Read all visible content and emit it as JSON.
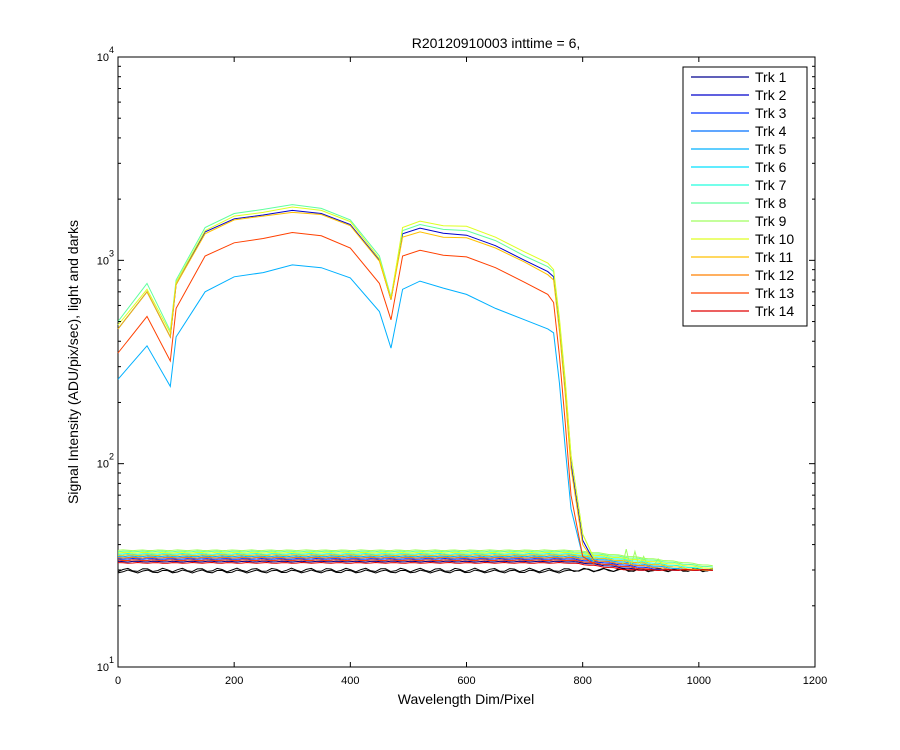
{
  "chart_data": {
    "type": "line",
    "title": "R20120910003 inttime = 6,",
    "xlabel": "Wavelength Dim/Pixel",
    "ylabel": "Signal Intensity (ADU/pix/sec), light and darks",
    "xlim": [
      0,
      1200
    ],
    "ylim": [
      10,
      10000
    ],
    "yscale": "log",
    "x_ticks": [
      "0",
      "200",
      "400",
      "600",
      "800",
      "1000",
      "1200"
    ],
    "y_ticks": [
      {
        "base": "10",
        "exp": "1"
      },
      {
        "base": "10",
        "exp": "2"
      },
      {
        "base": "10",
        "exp": "3"
      },
      {
        "base": "10",
        "exp": "4"
      }
    ],
    "grid": false,
    "legend_position": "top-right",
    "series": [
      {
        "name": "Trk 1",
        "color": "#00008f",
        "light_x": [],
        "light_y": [],
        "dark_level": 33
      },
      {
        "name": "Trk 2",
        "color": "#0000cc",
        "light_x": [],
        "light_y": [],
        "dark_level": 33.5
      },
      {
        "name": "Trk 3",
        "color": "#0030ff",
        "light_x": [],
        "light_y": [],
        "dark_level": 34
      },
      {
        "name": "Trk 4",
        "color": "#0070ff",
        "light_x": [],
        "light_y": [],
        "dark_level": 34.5
      },
      {
        "name": "Trk 5",
        "color": "#00b0ff",
        "light_x": [
          0,
          50,
          90,
          100,
          150,
          200,
          250,
          300,
          350,
          400,
          450,
          470,
          490,
          520,
          560,
          600,
          650,
          700,
          740,
          750,
          760,
          770,
          780,
          800,
          820
        ],
        "light_y": [
          260,
          380,
          240,
          420,
          700,
          830,
          870,
          950,
          920,
          820,
          560,
          370,
          720,
          790,
          730,
          680,
          580,
          510,
          460,
          440,
          250,
          120,
          60,
          35,
          33
        ],
        "dark_level": 35
      },
      {
        "name": "Trk 6",
        "color": "#00e0ff",
        "light_x": [],
        "light_y": [],
        "dark_level": 35.5
      },
      {
        "name": "Trk 7",
        "color": "#20ffdf",
        "light_x": [],
        "light_y": [],
        "dark_level": 36
      },
      {
        "name": "Trk 8",
        "color": "#60ff9f",
        "light_x": [
          0,
          50,
          90,
          100,
          150,
          200,
          250,
          300,
          350,
          400,
          450,
          470,
          490,
          520,
          560,
          600,
          650,
          700,
          740,
          750,
          760,
          770,
          780,
          800,
          820
        ],
        "light_y": [
          500,
          770,
          450,
          800,
          1450,
          1700,
          1780,
          1880,
          1800,
          1580,
          1050,
          660,
          1400,
          1500,
          1420,
          1400,
          1250,
          1050,
          930,
          880,
          500,
          250,
          110,
          45,
          34
        ],
        "dark_level": 37
      },
      {
        "name": "Trk 9",
        "color": "#a0ff5f",
        "light_x": [],
        "light_y": [],
        "dark_level": 37.5
      },
      {
        "name": "Trk 10",
        "color": "#dfff20",
        "light_x": [
          0,
          50,
          90,
          100,
          150,
          200,
          250,
          300,
          350,
          400,
          450,
          470,
          490,
          520,
          560,
          600,
          650,
          700,
          740,
          750,
          760,
          770,
          780,
          800,
          820
        ],
        "light_y": [
          480,
          720,
          440,
          780,
          1400,
          1650,
          1720,
          1830,
          1760,
          1550,
          1020,
          650,
          1450,
          1560,
          1480,
          1470,
          1300,
          1100,
          970,
          900,
          520,
          260,
          110,
          45,
          34
        ],
        "dark_level": 36.5
      },
      {
        "name": "Trk 11",
        "color": "#ffc000",
        "light_x": [
          0,
          50,
          90,
          100,
          150,
          200,
          250,
          300,
          350,
          400,
          450,
          470,
          490,
          520,
          560,
          600,
          650,
          700,
          740,
          750,
          760,
          770,
          780,
          800,
          820
        ],
        "light_y": [
          460,
          700,
          420,
          760,
          1350,
          1580,
          1650,
          1720,
          1680,
          1480,
          990,
          640,
          1300,
          1380,
          1300,
          1290,
          1150,
          980,
          850,
          800,
          450,
          220,
          95,
          40,
          33
        ],
        "dark_level": 35.5
      },
      {
        "name": "Trk 12",
        "color": "#ff8000",
        "light_x": [],
        "light_y": [],
        "dark_level": 34.5
      },
      {
        "name": "Trk 13",
        "color": "#ff4000",
        "light_x": [
          0,
          50,
          90,
          100,
          150,
          200,
          250,
          300,
          350,
          400,
          450,
          470,
          490,
          520,
          560,
          600,
          650,
          700,
          740,
          750,
          760,
          770,
          780,
          800,
          820
        ],
        "light_y": [
          350,
          530,
          320,
          580,
          1050,
          1220,
          1280,
          1370,
          1320,
          1150,
          770,
          510,
          1050,
          1120,
          1060,
          1040,
          920,
          780,
          680,
          620,
          340,
          160,
          70,
          35,
          32
        ],
        "dark_level": 33.5
      },
      {
        "name": "Trk 14",
        "color": "#e00000",
        "light_x": [],
        "light_y": [],
        "dark_level": 32.5
      }
    ],
    "extra_series": [
      {
        "color": "#0000cc",
        "light_x": [
          0,
          50,
          90,
          100,
          150,
          200,
          250,
          300,
          350,
          400,
          450,
          470,
          490,
          520,
          560,
          600,
          650,
          700,
          740,
          750,
          760,
          770,
          780,
          800,
          820
        ],
        "light_y": [
          460,
          700,
          420,
          760,
          1380,
          1600,
          1670,
          1760,
          1700,
          1500,
          1000,
          640,
          1350,
          1440,
          1360,
          1330,
          1180,
          1000,
          880,
          830,
          470,
          230,
          100,
          42,
          33
        ]
      },
      {
        "color": "#000000",
        "dark_level": 30
      }
    ]
  }
}
